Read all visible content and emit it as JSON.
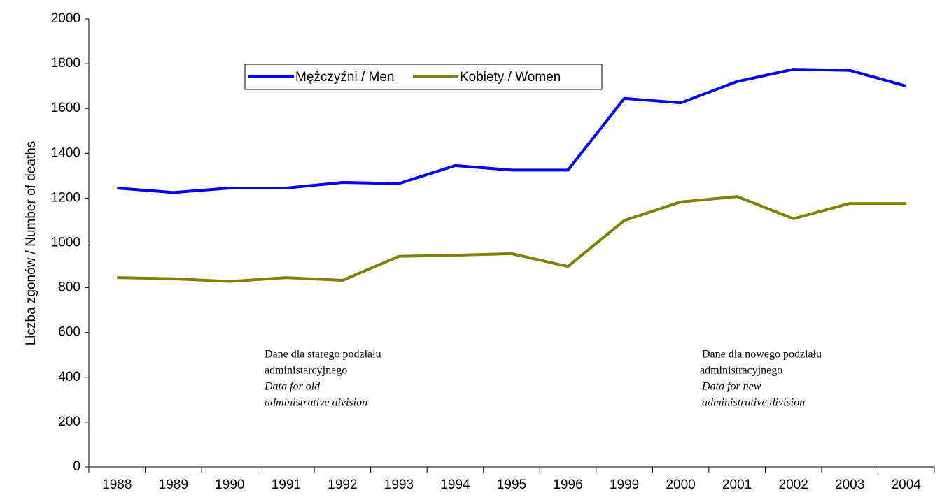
{
  "chart_data": {
    "type": "line",
    "y_label": "Liczba zgonów / Number of deaths",
    "categories": [
      "1988",
      "1989",
      "1990",
      "1991",
      "1992",
      "1993",
      "1994",
      "1995",
      "1996",
      "1999",
      "2000",
      "2001",
      "2002",
      "2003",
      "2004"
    ],
    "series": [
      {
        "name": "Mężczyźni / Men",
        "color": "#0000ff",
        "values": [
          1245,
          1225,
          1245,
          1245,
          1270,
          1265,
          1345,
          1325,
          1325,
          1645,
          1625,
          1720,
          1775,
          1770,
          1700
        ]
      },
      {
        "name": "Kobiety / Women",
        "color": "#808000",
        "values": [
          845,
          840,
          828,
          845,
          833,
          940,
          945,
          952,
          895,
          1100,
          1183,
          1207,
          1108,
          1176,
          1176
        ]
      }
    ],
    "ylim": [
      0,
      2000
    ],
    "yticks": [
      0,
      200,
      400,
      600,
      800,
      1000,
      1200,
      1400,
      1600,
      1800,
      2000
    ],
    "annotations": [
      {
        "text": [
          "Dane dla starego podziału",
          "administarcyjnego"
        ],
        "italic": [
          "Data for old",
          "administrative division"
        ]
      },
      {
        "text": [
          "Dane dla nowego podziału",
          "administracyjnego"
        ],
        "italic": [
          "Data for new",
          "administrative division"
        ]
      }
    ]
  }
}
